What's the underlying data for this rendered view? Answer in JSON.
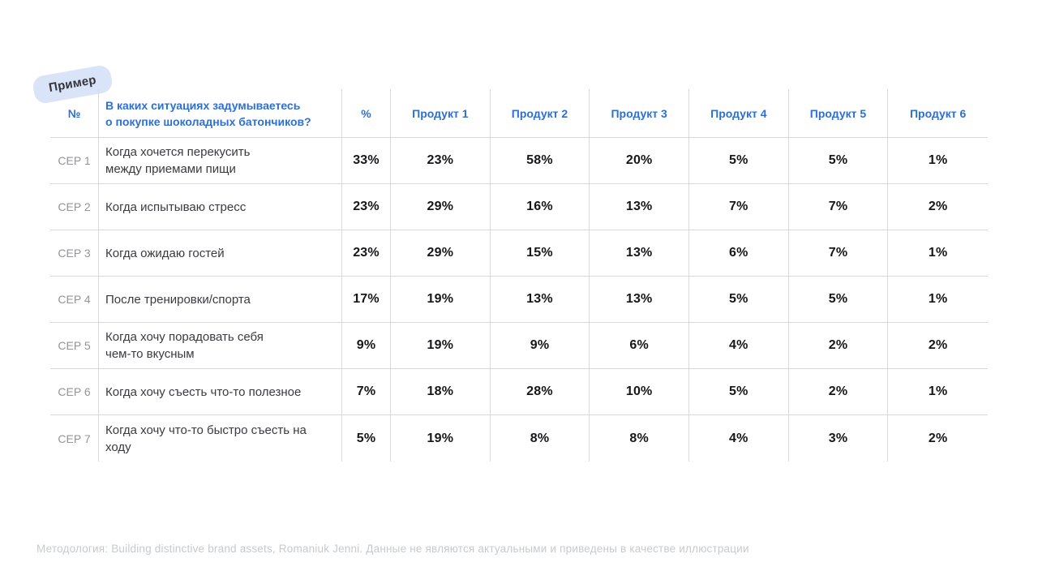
{
  "badge": {
    "label": "Пример"
  },
  "colors": {
    "accent_blue": "#2e6fd6",
    "badge_bg": "#d9e4f9",
    "grid_line": "#d9d9d9",
    "muted_gray": "#949499",
    "footnote_gray": "#c7cacd"
  },
  "table": {
    "header": {
      "num": "№",
      "question_lines": [
        "В каких ситуациях задумываетесь",
        "о покупке шоколадных батончиков?"
      ],
      "percent": "%",
      "products": [
        "Продукт 1",
        "Продукт 2",
        "Продукт 3",
        "Продукт 4",
        "Продукт 5",
        "Продукт 6"
      ]
    },
    "rows": [
      {
        "id": "CEP 1",
        "lines": [
          "Когда хочется перекусить",
          "между приемами пищи"
        ],
        "total": "33%",
        "values": [
          "23%",
          "58%",
          "20%",
          "5%",
          "5%",
          "1%"
        ]
      },
      {
        "id": "CEP 2",
        "lines": [
          "Когда испытываю стресс"
        ],
        "total": "23%",
        "values": [
          "29%",
          "16%",
          "13%",
          "7%",
          "7%",
          "2%"
        ]
      },
      {
        "id": "CEP 3",
        "lines": [
          "Когда ожидаю гостей"
        ],
        "total": "23%",
        "values": [
          "29%",
          "15%",
          "13%",
          "6%",
          "7%",
          "1%"
        ]
      },
      {
        "id": "CEP 4",
        "lines": [
          "После тренировки/спорта"
        ],
        "total": "17%",
        "values": [
          "19%",
          "13%",
          "13%",
          "5%",
          "5%",
          "1%"
        ]
      },
      {
        "id": "CEP 5",
        "lines": [
          "Когда хочу порадовать себя",
          "чем-то вкусным"
        ],
        "total": "9%",
        "values": [
          "19%",
          "9%",
          "6%",
          "4%",
          "2%",
          "2%"
        ]
      },
      {
        "id": "CEP 6",
        "lines": [
          "Когда хочу съесть что-то полезное"
        ],
        "total": "7%",
        "values": [
          "18%",
          "28%",
          "10%",
          "5%",
          "2%",
          "1%"
        ]
      },
      {
        "id": "CEP 7",
        "lines": [
          "Когда хочу что-то быстро съесть на ходу"
        ],
        "total": "5%",
        "values": [
          "19%",
          "8%",
          "8%",
          "4%",
          "3%",
          "2%"
        ]
      }
    ]
  },
  "footer": {
    "text": "Методология: Building distinctive brand assets, Romaniuk Jenni. Данные не являются актуальными и приведены в качестве иллюстрации"
  }
}
